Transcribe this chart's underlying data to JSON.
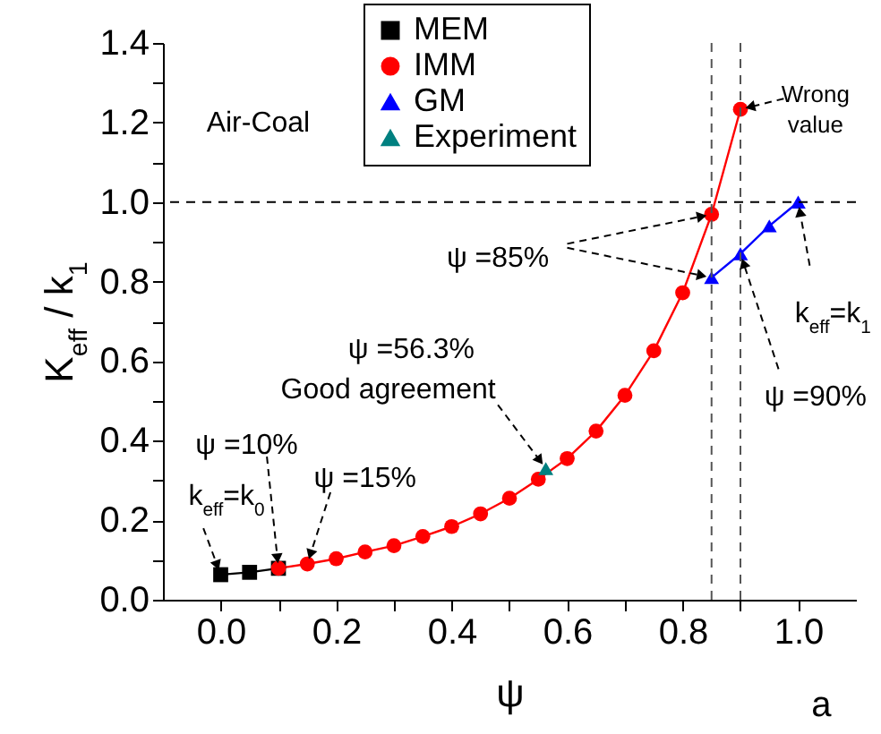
{
  "chart_data": {
    "type": "line",
    "xlabel": "ψ",
    "ylabel": "K$_{eff}$ / k$_{1}$",
    "xlim": [
      -0.1,
      1.1
    ],
    "xticks": [
      {
        "value": 0,
        "label": "0.0"
      },
      {
        "value": 0.1,
        "label": null
      },
      {
        "value": 0.2,
        "label": "0.2"
      },
      {
        "value": 0.3,
        "label": null
      },
      {
        "value": 0.4,
        "label": "0.4"
      },
      {
        "value": 0.5,
        "label": null
      },
      {
        "value": 0.6,
        "label": "0.6"
      },
      {
        "value": 0.7,
        "label": null
      },
      {
        "value": 0.8,
        "label": "0.8"
      },
      {
        "value": 0.9,
        "label": null
      },
      {
        "value": 1,
        "label": "1.0"
      }
    ],
    "ylim": [
      0,
      1.4
    ],
    "yticks": [
      {
        "value": 0,
        "label": "0.0"
      },
      {
        "value": 0.1,
        "label": null
      },
      {
        "value": 0.2,
        "label": "0.2"
      },
      {
        "value": 0.3,
        "label": null
      },
      {
        "value": 0.4,
        "label": "0.4"
      },
      {
        "value": 0.5,
        "label": null
      },
      {
        "value": 0.6,
        "label": "0.6"
      },
      {
        "value": 0.7,
        "label": null
      },
      {
        "value": 0.8,
        "label": "0.8"
      },
      {
        "value": 0.9,
        "label": null
      },
      {
        "value": 1,
        "label": "1.0"
      },
      {
        "value": 1.1,
        "label": null
      },
      {
        "value": 1.2,
        "label": "1.2"
      },
      {
        "value": 1.3,
        "label": null
      },
      {
        "value": 1.4,
        "label": "1.4"
      }
    ],
    "legend": "top",
    "series": [
      {
        "name": "MEM",
        "color": "#000000",
        "marker": "square",
        "x": [
          0,
          0.05,
          0.1
        ],
        "values": [
          0.063,
          0.069,
          0.079
        ]
      },
      {
        "name": "IMM",
        "color": "#ff0000",
        "marker": "circle",
        "x": [
          0.1,
          0.15,
          0.2,
          0.25,
          0.3,
          0.35,
          0.4,
          0.45,
          0.5,
          0.55,
          0.6,
          0.65,
          0.7,
          0.75,
          0.8,
          0.85,
          0.9
        ],
        "values": [
          0.079,
          0.09,
          0.103,
          0.12,
          0.136,
          0.159,
          0.184,
          0.216,
          0.255,
          0.303,
          0.355,
          0.424,
          0.514,
          0.626,
          0.772,
          0.969,
          1.233
        ]
      },
      {
        "name": "GM",
        "color": "#0000ff",
        "marker": "triangle",
        "x": [
          0.85,
          0.9,
          0.95,
          1.0
        ],
        "values": [
          0.81,
          0.87,
          0.94,
          1.0
        ]
      },
      {
        "name": "Experiment",
        "color": "#008080",
        "marker": "triangle",
        "type": "scatter",
        "x": [
          0.563
        ],
        "values": [
          0.33
        ]
      }
    ],
    "ref_lines": [
      {
        "axis": "y",
        "value": 1.0,
        "color": "#000000",
        "line_style": "dashed"
      },
      {
        "axis": "x",
        "value": 0.85,
        "color": "#555555",
        "line_style": "dashed"
      },
      {
        "axis": "x",
        "value": 0.9,
        "color": "#555555",
        "line_style": "dashed"
      }
    ],
    "annotations": [
      "Air-Coal",
      {
        "text": "Wrong value",
        "x": 0.9,
        "y": 1.233
      },
      {
        "text": "ψ =85%",
        "x": 0.85,
        "y": 0.969
      },
      {
        "text": "k$_{eff}$=k$_{1}$",
        "x": 1.0,
        "y": 1.0
      },
      {
        "text": "ψ =90%",
        "x": 0.9,
        "y": 0.87
      },
      "ψ =56.3%",
      {
        "text": "Good agreement",
        "x": 0.563,
        "y": 0.33
      },
      {
        "text": "ψ =10%",
        "x": 0.1,
        "y": 0.079
      },
      {
        "text": "ψ =15%",
        "x": 0.15,
        "y": 0.09
      },
      {
        "text": "k$_{eff}$=k$_{0}$",
        "x": 0,
        "y": 0.063
      },
      "a"
    ]
  }
}
